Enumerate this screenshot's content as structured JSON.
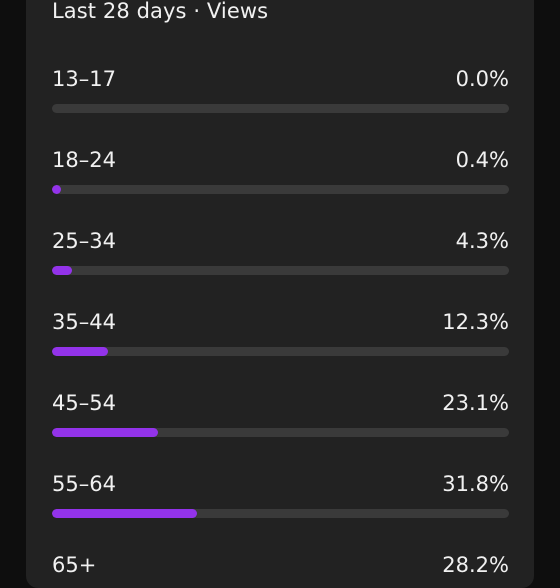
{
  "card": {
    "subtitle": "Last 28 days · Views"
  },
  "accent_color": "#9333ea",
  "track_color": "#3a3a3a",
  "age_groups": [
    {
      "label": "13–17",
      "value": "0.0%",
      "percent": 0.0
    },
    {
      "label": "18–24",
      "value": "0.4%",
      "percent": 0.4
    },
    {
      "label": "25–34",
      "value": "4.3%",
      "percent": 4.3
    },
    {
      "label": "35–44",
      "value": "12.3%",
      "percent": 12.3
    },
    {
      "label": "45–54",
      "value": "23.1%",
      "percent": 23.1
    },
    {
      "label": "55–64",
      "value": "31.8%",
      "percent": 31.8
    },
    {
      "label": "65+",
      "value": "28.2%",
      "percent": 28.2
    }
  ]
}
